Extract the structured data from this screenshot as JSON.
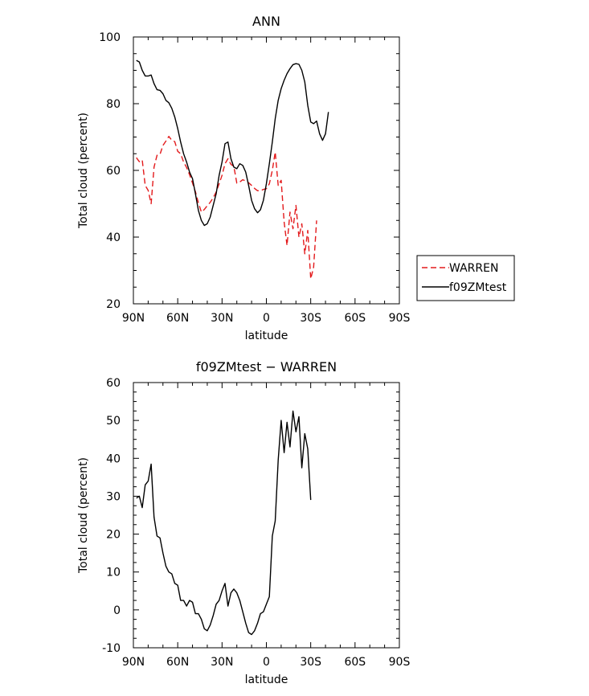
{
  "chart_data": [
    {
      "type": "line",
      "title": "ANN",
      "xlabel": "latitude",
      "ylabel": "Total cloud (percent)",
      "xlim": [
        90,
        -90
      ],
      "ylim": [
        20,
        100
      ],
      "x_ticks": [
        {
          "value": 90,
          "label": "90N"
        },
        {
          "value": 60,
          "label": "60N"
        },
        {
          "value": 30,
          "label": "30N"
        },
        {
          "value": 0,
          "label": "0"
        },
        {
          "value": -30,
          "label": "30S"
        },
        {
          "value": -60,
          "label": "60S"
        },
        {
          "value": -90,
          "label": "90S"
        }
      ],
      "y_ticks": [
        20,
        40,
        60,
        80,
        100
      ],
      "legend_position": "right",
      "series": [
        {
          "name": "WARREN",
          "color": "#e31a1c",
          "dash": "dashed",
          "points": [
            [
              88,
              63.8
            ],
            [
              86,
              62.6
            ],
            [
              84,
              63.1
            ],
            [
              82,
              55.5
            ],
            [
              80,
              54.0
            ],
            [
              78,
              50.0
            ],
            [
              76,
              61.0
            ],
            [
              74,
              64.5
            ],
            [
              72,
              64.8
            ],
            [
              70,
              67.5
            ],
            [
              68,
              68.8
            ],
            [
              66,
              70.2
            ],
            [
              64,
              69.0
            ],
            [
              62,
              68.6
            ],
            [
              60,
              65.7
            ],
            [
              58,
              65.0
            ],
            [
              56,
              62.5
            ],
            [
              54,
              60.9
            ],
            [
              52,
              58.7
            ],
            [
              50,
              56.2
            ],
            [
              48,
              53.6
            ],
            [
              46,
              50.3
            ],
            [
              44,
              47.5
            ],
            [
              42,
              48.3
            ],
            [
              40,
              49.4
            ],
            [
              38,
              50.4
            ],
            [
              36,
              51.8
            ],
            [
              34,
              53.5
            ],
            [
              32,
              56.0
            ],
            [
              30,
              58.5
            ],
            [
              28,
              62.0
            ],
            [
              26,
              63.5
            ],
            [
              24,
              61.8
            ],
            [
              22,
              61.2
            ],
            [
              20,
              56.2
            ],
            [
              18,
              56.5
            ],
            [
              16,
              57.2
            ],
            [
              14,
              56.8
            ],
            [
              12,
              56.3
            ],
            [
              10,
              55.5
            ],
            [
              8,
              54.6
            ],
            [
              6,
              53.9
            ],
            [
              4,
              53.9
            ],
            [
              2,
              54.3
            ],
            [
              0,
              54.5
            ],
            [
              -2,
              56.0
            ],
            [
              -4,
              60.0
            ],
            [
              -6,
              65.5
            ],
            [
              -8,
              55.5
            ],
            [
              -10,
              57.0
            ],
            [
              -12,
              44.5
            ],
            [
              -14,
              37.5
            ],
            [
              -16,
              47.5
            ],
            [
              -18,
              42.5
            ],
            [
              -20,
              49.5
            ],
            [
              -22,
              40.0
            ],
            [
              -24,
              44.0
            ],
            [
              -26,
              35.0
            ],
            [
              -28,
              42.0
            ],
            [
              -30,
              27.5
            ],
            [
              -32,
              31.0
            ],
            [
              -34,
              45.0
            ]
          ]
        },
        {
          "name": "f09ZMtest",
          "color": "#000000",
          "dash": "solid",
          "points": [
            [
              88,
              93.0
            ],
            [
              86,
              92.5
            ],
            [
              84,
              90.0
            ],
            [
              82,
              88.3
            ],
            [
              80,
              88.3
            ],
            [
              78,
              88.6
            ],
            [
              76,
              86.0
            ],
            [
              74,
              84.2
            ],
            [
              72,
              84.0
            ],
            [
              70,
              83.0
            ],
            [
              68,
              81.0
            ],
            [
              66,
              80.3
            ],
            [
              64,
              78.6
            ],
            [
              62,
              76.0
            ],
            [
              60,
              72.5
            ],
            [
              58,
              68.5
            ],
            [
              56,
              65.0
            ],
            [
              54,
              62.5
            ],
            [
              52,
              59.5
            ],
            [
              50,
              57.5
            ],
            [
              48,
              53.0
            ],
            [
              46,
              48.0
            ],
            [
              44,
              45.0
            ],
            [
              42,
              43.5
            ],
            [
              40,
              44.0
            ],
            [
              38,
              46.0
            ],
            [
              36,
              49.5
            ],
            [
              34,
              53.0
            ],
            [
              32,
              58.5
            ],
            [
              30,
              62.5
            ],
            [
              28,
              68.0
            ],
            [
              26,
              68.5
            ],
            [
              24,
              63.5
            ],
            [
              22,
              61.0
            ],
            [
              20,
              60.5
            ],
            [
              18,
              62.0
            ],
            [
              16,
              61.5
            ],
            [
              14,
              59.5
            ],
            [
              12,
              55.5
            ],
            [
              10,
              51.0
            ],
            [
              8,
              48.5
            ],
            [
              6,
              47.3
            ],
            [
              4,
              48.2
            ],
            [
              2,
              51.0
            ],
            [
              0,
              56.0
            ],
            [
              -2,
              62.0
            ],
            [
              -4,
              68.5
            ],
            [
              -6,
              75.5
            ],
            [
              -8,
              81.0
            ],
            [
              -10,
              84.5
            ],
            [
              -12,
              87.0
            ],
            [
              -14,
              89.0
            ],
            [
              -16,
              90.5
            ],
            [
              -18,
              91.7
            ],
            [
              -20,
              92.0
            ],
            [
              -22,
              91.8
            ],
            [
              -24,
              90.0
            ],
            [
              -26,
              86.5
            ],
            [
              -28,
              79.5
            ],
            [
              -30,
              74.5
            ],
            [
              -32,
              74.0
            ],
            [
              -34,
              74.8
            ],
            [
              -36,
              71.0
            ],
            [
              -38,
              69.0
            ],
            [
              -40,
              71.0
            ],
            [
              -42,
              77.5
            ]
          ]
        }
      ]
    },
    {
      "type": "line",
      "title": "f09ZMtest − WARREN",
      "xlabel": "latitude",
      "ylabel": "Total cloud (percent)",
      "xlim": [
        90,
        -90
      ],
      "ylim": [
        -10,
        60
      ],
      "x_ticks": [
        {
          "value": 90,
          "label": "90N"
        },
        {
          "value": 60,
          "label": "60N"
        },
        {
          "value": 30,
          "label": "30N"
        },
        {
          "value": 0,
          "label": "0"
        },
        {
          "value": -30,
          "label": "30S"
        },
        {
          "value": -60,
          "label": "60S"
        },
        {
          "value": -90,
          "label": "90S"
        }
      ],
      "y_ticks": [
        -10,
        0,
        10,
        20,
        30,
        40,
        50,
        60
      ],
      "series": [
        {
          "color": "#000000",
          "dash": "solid",
          "points": [
            [
              88,
              29.5
            ],
            [
              86,
              30.0
            ],
            [
              84,
              27.0
            ],
            [
              82,
              33.0
            ],
            [
              80,
              34.0
            ],
            [
              78,
              38.5
            ],
            [
              76,
              24.5
            ],
            [
              74,
              19.5
            ],
            [
              72,
              19.0
            ],
            [
              70,
              15.0
            ],
            [
              68,
              11.5
            ],
            [
              66,
              10.0
            ],
            [
              64,
              9.5
            ],
            [
              62,
              7.0
            ],
            [
              60,
              6.5
            ],
            [
              58,
              2.5
            ],
            [
              56,
              2.5
            ],
            [
              54,
              1.0
            ],
            [
              52,
              2.5
            ],
            [
              50,
              2.0
            ],
            [
              48,
              -1.0
            ],
            [
              46,
              -1.0
            ],
            [
              44,
              -2.5
            ],
            [
              42,
              -5.0
            ],
            [
              40,
              -5.5
            ],
            [
              38,
              -4.0
            ],
            [
              36,
              -1.5
            ],
            [
              34,
              1.5
            ],
            [
              32,
              2.5
            ],
            [
              30,
              5.0
            ],
            [
              28,
              7.0
            ],
            [
              26,
              1.0
            ],
            [
              24,
              4.5
            ],
            [
              22,
              5.5
            ],
            [
              20,
              4.5
            ],
            [
              18,
              2.5
            ],
            [
              16,
              -0.5
            ],
            [
              14,
              -3.5
            ],
            [
              12,
              -6.0
            ],
            [
              10,
              -6.5
            ],
            [
              8,
              -5.5
            ],
            [
              6,
              -3.5
            ],
            [
              4,
              -1.0
            ],
            [
              2,
              -0.5
            ],
            [
              0,
              1.5
            ],
            [
              -2,
              3.5
            ],
            [
              -4,
              19.5
            ],
            [
              -6,
              23.5
            ],
            [
              -8,
              39.5
            ],
            [
              -10,
              50.0
            ],
            [
              -12,
              41.5
            ],
            [
              -14,
              49.5
            ],
            [
              -16,
              43.0
            ],
            [
              -18,
              52.5
            ],
            [
              -20,
              47.0
            ],
            [
              -22,
              51.0
            ],
            [
              -24,
              37.5
            ],
            [
              -26,
              46.5
            ],
            [
              -28,
              42.5
            ],
            [
              -30,
              29.0
            ]
          ]
        }
      ]
    }
  ]
}
